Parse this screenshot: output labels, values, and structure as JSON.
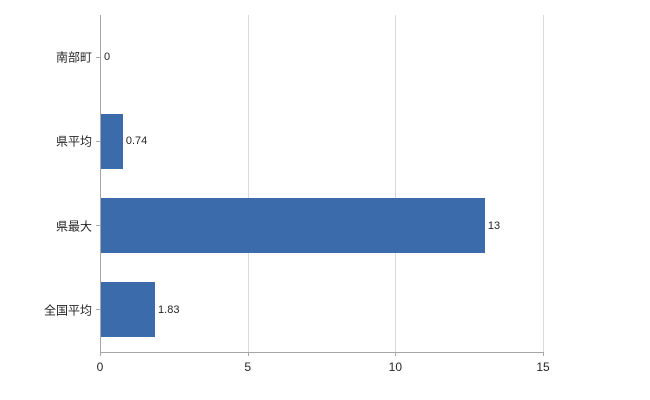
{
  "chart_data": {
    "type": "bar",
    "orientation": "horizontal",
    "title": "",
    "categories": [
      "南部町",
      "県平均",
      "県最大",
      "全国平均"
    ],
    "values": [
      0,
      0.74,
      13,
      1.83
    ],
    "value_labels": [
      "0",
      "0.74",
      "13",
      "1.83"
    ],
    "xlim": [
      0,
      15
    ],
    "x_tick_values": [
      0,
      5,
      10,
      15
    ],
    "x_tick_labels": [
      "0",
      "5",
      "10",
      "15"
    ],
    "bar_color": "#3c6bab",
    "gridline_color": "#d9d9d9",
    "axis_color": "#a6a6a6",
    "background_color": "#ffffff",
    "grid": true,
    "legend": "none"
  }
}
